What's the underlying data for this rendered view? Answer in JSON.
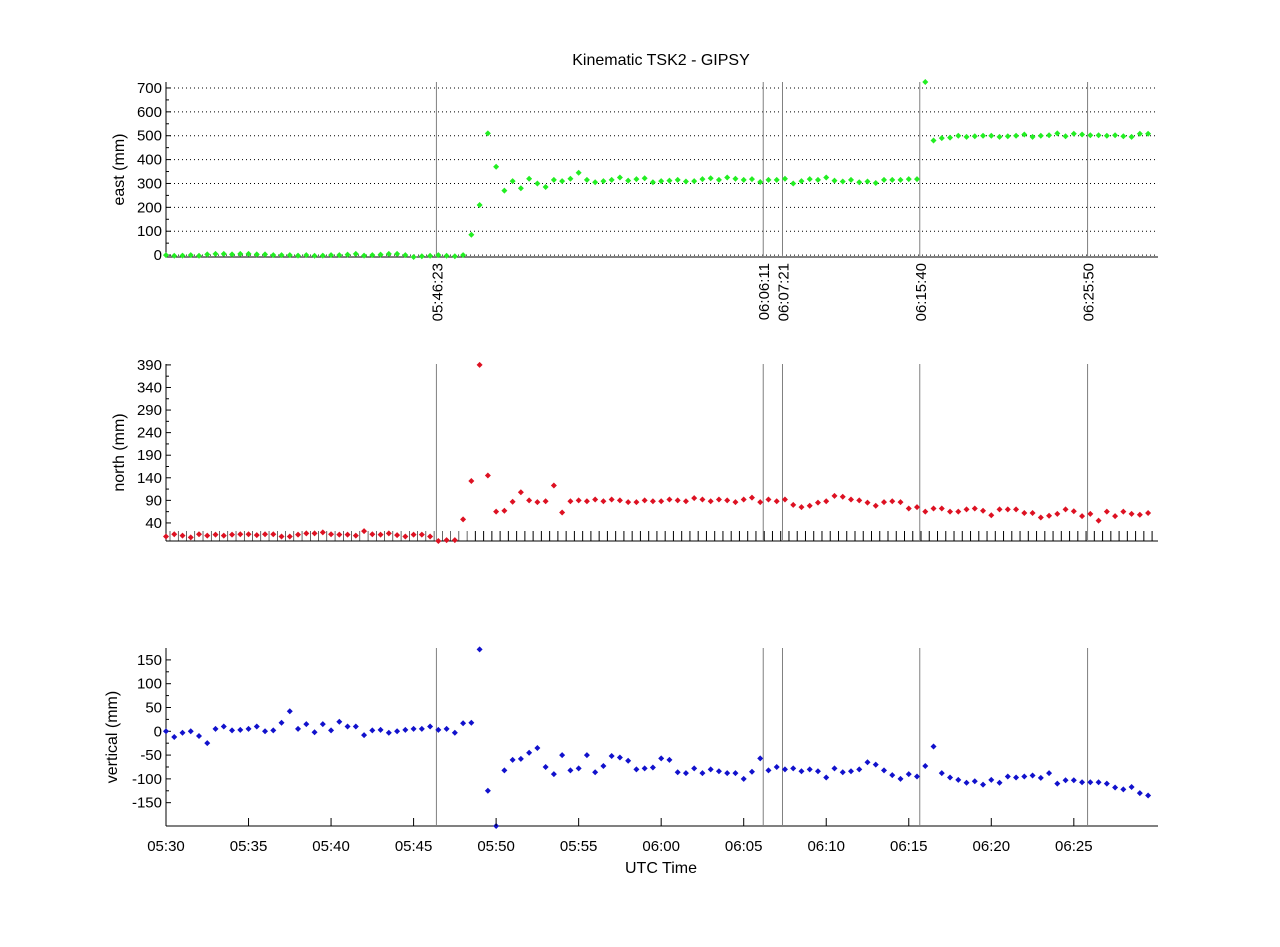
{
  "chart_data": [
    {
      "type": "scatter",
      "title": "Kinematic TSK2 - GIPSY",
      "ylabel": "east (mm)",
      "color": "#22ee22",
      "ylim": [
        -8,
        725
      ],
      "yticks": [
        0,
        100,
        200,
        300,
        400,
        500,
        600,
        700
      ],
      "grid": true,
      "values": [
        0,
        -3,
        -2,
        0,
        -3,
        3,
        5,
        5,
        3,
        5,
        5,
        3,
        3,
        0,
        0,
        0,
        -2,
        0,
        -3,
        -2,
        0,
        0,
        2,
        5,
        -2,
        0,
        2,
        5,
        5,
        0,
        -10,
        -5,
        -3,
        0,
        -3,
        -5,
        0,
        85,
        210,
        510,
        370,
        270,
        310,
        280,
        320,
        300,
        285,
        315,
        310,
        320,
        345,
        315,
        305,
        310,
        315,
        325,
        312,
        318,
        322,
        305,
        310,
        312,
        315,
        308,
        310,
        318,
        322,
        315,
        325,
        320,
        315,
        318,
        306,
        315,
        315,
        320,
        300,
        310,
        318,
        315,
        325,
        312,
        308,
        315,
        305,
        308,
        302,
        315,
        315,
        315,
        318,
        318,
        725,
        480,
        490,
        492,
        500,
        495,
        498,
        500,
        500,
        495,
        498,
        500,
        505,
        495,
        500,
        502,
        510,
        498,
        508,
        505,
        502,
        502,
        500,
        502,
        498,
        495,
        508,
        508
      ]
    },
    {
      "type": "scatter",
      "ylabel": "north (mm)",
      "color": "#dd1122",
      "ylim": [
        0,
        392
      ],
      "yticks": [
        40,
        90,
        140,
        190,
        240,
        290,
        340,
        390
      ],
      "grid": false,
      "values": [
        10,
        15,
        12,
        8,
        15,
        12,
        14,
        12,
        14,
        15,
        15,
        13,
        15,
        15,
        10,
        10,
        14,
        17,
        17,
        19,
        15,
        14,
        14,
        12,
        22,
        15,
        14,
        17,
        13,
        10,
        14,
        14,
        10,
        0,
        2,
        2,
        48,
        133,
        390,
        145,
        65,
        67,
        87,
        108,
        90,
        86,
        88,
        123,
        63,
        88,
        90,
        88,
        92,
        88,
        92,
        90,
        86,
        86,
        90,
        88,
        88,
        92,
        90,
        88,
        95,
        92,
        88,
        92,
        90,
        86,
        92,
        96,
        86,
        92,
        88,
        92,
        80,
        75,
        78,
        85,
        88,
        100,
        98,
        92,
        90,
        85,
        78,
        86,
        88,
        86,
        72,
        75,
        65,
        72,
        72,
        65,
        65,
        70,
        72,
        67,
        57,
        70,
        70,
        70,
        62,
        62,
        52,
        56,
        60,
        70,
        66,
        55,
        60,
        45,
        65,
        55,
        65,
        60,
        58,
        62
      ]
    },
    {
      "type": "scatter",
      "ylabel": "vertical (mm)",
      "xlabel": "UTC Time",
      "color": "#1111cc",
      "ylim": [
        -199,
        175
      ],
      "yticks": [
        -150,
        -100,
        -50,
        0,
        50,
        100,
        150
      ],
      "grid": false,
      "values": [
        0,
        -12,
        -3,
        0,
        -10,
        -25,
        5,
        10,
        2,
        3,
        5,
        10,
        0,
        2,
        18,
        42,
        5,
        15,
        -2,
        15,
        2,
        20,
        10,
        10,
        -8,
        2,
        3,
        -3,
        0,
        3,
        5,
        5,
        10,
        3,
        5,
        -3,
        17,
        18,
        172,
        -125,
        -199,
        -82,
        -60,
        -58,
        -45,
        -35,
        -75,
        -90,
        -50,
        -82,
        -78,
        -50,
        -86,
        -73,
        -52,
        -55,
        -62,
        -80,
        -78,
        -76,
        -57,
        -60,
        -86,
        -88,
        -78,
        -88,
        -80,
        -84,
        -88,
        -88,
        -100,
        -85,
        -57,
        -82,
        -75,
        -80,
        -78,
        -84,
        -80,
        -84,
        -97,
        -78,
        -86,
        -84,
        -80,
        -65,
        -70,
        -82,
        -92,
        -100,
        -90,
        -95,
        -73,
        -32,
        -88,
        -97,
        -102,
        -108,
        -105,
        -112,
        -102,
        -108,
        -95,
        -97,
        -95,
        -93,
        -98,
        -88,
        -110,
        -103,
        -103,
        -107,
        -107,
        -107,
        -110,
        -118,
        -122,
        -117,
        -130,
        -135
      ]
    }
  ],
  "x_axis": {
    "start": "05:30",
    "interval_seconds": 30,
    "range_minutes": [
      0,
      60.1
    ],
    "tick_labels": [
      "05:30",
      "05:35",
      "05:40",
      "05:45",
      "05:50",
      "05:55",
      "06:00",
      "06:05",
      "06:10",
      "06:15",
      "06:20",
      "06:25"
    ]
  },
  "events": [
    {
      "label": "05:46:23",
      "minutes": 16.383
    },
    {
      "label": "06:06:11",
      "minutes": 36.183
    },
    {
      "label": "06:07:21",
      "minutes": 37.35
    },
    {
      "label": "06:15:40",
      "minutes": 45.667
    },
    {
      "label": "06:25:50",
      "minutes": 55.833
    }
  ]
}
